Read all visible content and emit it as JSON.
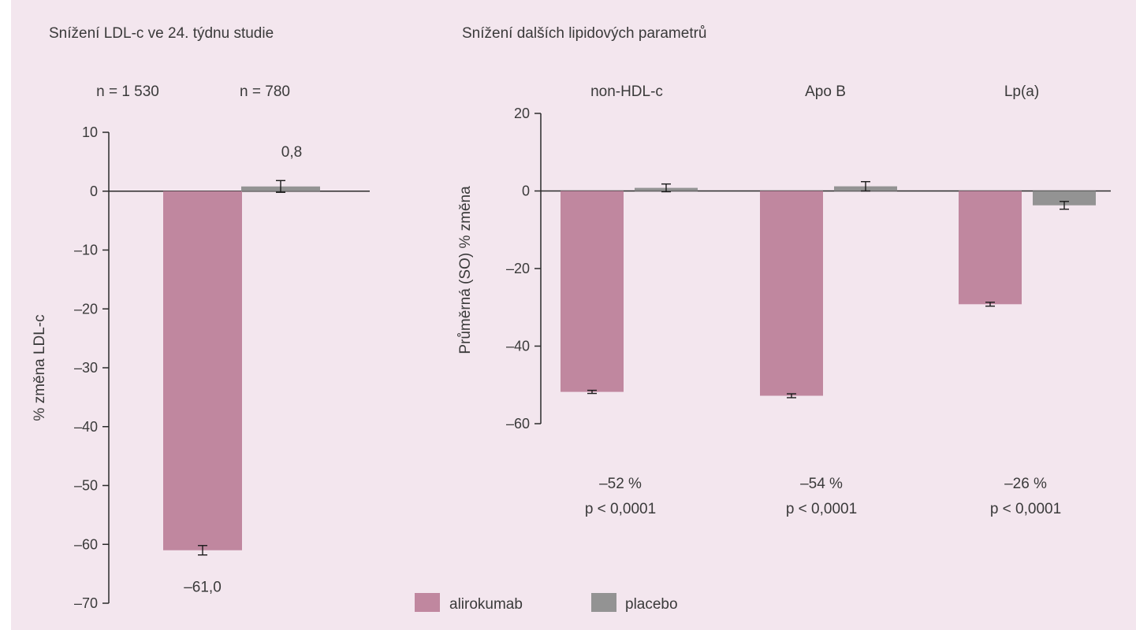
{
  "colors": {
    "alirokumab": "#c0879f",
    "placebo": "#939393",
    "background": "#f3e6ee"
  },
  "chart_data": [
    {
      "type": "bar",
      "title": "Snížení LDL-c ve 24. týdnu studie",
      "ylabel": "% změna LDL-c",
      "ylim": [
        -70,
        10
      ],
      "yticks": [
        10,
        0,
        -10,
        -20,
        -30,
        -40,
        -50,
        -60,
        -70
      ],
      "ytick_labels": [
        "10",
        "0",
        "–10",
        "–20",
        "–30",
        "–40",
        "–50",
        "–60",
        "–70"
      ],
      "categories": [
        "alirokumab",
        "placebo"
      ],
      "category_labels": [
        "n = 1 530",
        "n = 780"
      ],
      "values": [
        -61.0,
        0.8
      ],
      "errors": [
        0.8,
        1.0
      ],
      "data_labels": [
        "–61,0",
        "0,8"
      ]
    },
    {
      "type": "bar",
      "title": "Snížení dalších lipidových parametrů",
      "ylabel": "Průměrná (SO) % změna",
      "ylim": [
        -60,
        20
      ],
      "yticks": [
        20,
        0,
        -20,
        -40,
        -60
      ],
      "ytick_labels": [
        "20",
        "0",
        "–20",
        "–40",
        "–60"
      ],
      "categories": [
        "non-HDL-c",
        "Apo B",
        "Lp(a)"
      ],
      "series": [
        {
          "name": "alirokumab",
          "values": [
            -51.8,
            -52.8,
            -29.2
          ],
          "errors": [
            0.4,
            0.5,
            0.5
          ]
        },
        {
          "name": "placebo",
          "values": [
            0.8,
            1.2,
            -3.7
          ],
          "errors": [
            1.0,
            1.2,
            1.0
          ]
        }
      ],
      "annotations": [
        {
          "pct": "–52 %",
          "p": "p < 0,0001"
        },
        {
          "pct": "–54 %",
          "p": "p < 0,0001"
        },
        {
          "pct": "–26 %",
          "p": "p < 0,0001"
        }
      ]
    }
  ],
  "legend": {
    "placement": "bottom-center",
    "items": [
      "alirokumab",
      "placebo"
    ]
  }
}
